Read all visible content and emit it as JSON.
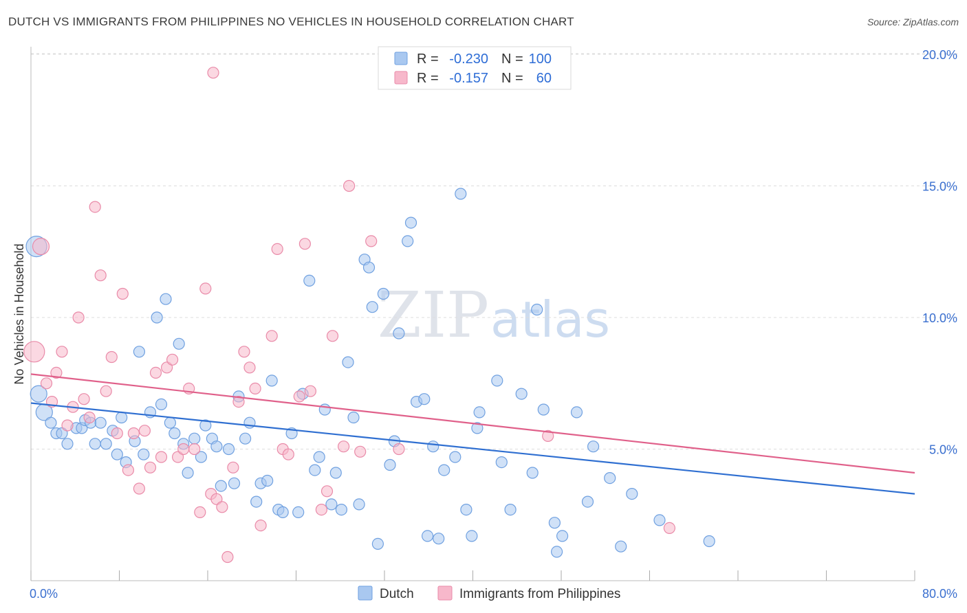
{
  "header": {
    "title": "DUTCH VS IMMIGRANTS FROM PHILIPPINES NO VEHICLES IN HOUSEHOLD CORRELATION CHART",
    "source": "Source: ZipAtlas.com"
  },
  "watermark": {
    "zip": "ZIP",
    "atlas": "atlas"
  },
  "legend": {
    "r_label": "R =",
    "n_label": "N =",
    "entries": [
      {
        "name": "Dutch",
        "r": "-0.230",
        "n": "100",
        "color": "#a9c8f0",
        "stroke": "#6fa0e0"
      },
      {
        "name": "Immigrants from Philippines",
        "r": "-0.157",
        "n": "60",
        "color": "#f7b8cb",
        "stroke": "#e98aa8"
      }
    ]
  },
  "chart_data": {
    "type": "scatter",
    "title": "DUTCH VS IMMIGRANTS FROM PHILIPPINES NO VEHICLES IN HOUSEHOLD CORRELATION CHART",
    "xlabel": "",
    "ylabel": "No Vehicles in Household",
    "xlim": [
      0,
      80
    ],
    "ylim": [
      0,
      20
    ],
    "x_tick_labels": [
      "0.0%",
      "80.0%"
    ],
    "y_tick_labels": [
      "5.0%",
      "10.0%",
      "15.0%",
      "20.0%"
    ],
    "y_ticks": [
      5,
      10,
      15,
      20
    ],
    "grid": "horizontal dashed",
    "legend_placement": "top-center",
    "series": [
      {
        "name": "Dutch",
        "color": "#6fa0e0",
        "fill": "#a9c8f0",
        "trend": {
          "x": [
            0,
            80
          ],
          "y": [
            6.75,
            3.3
          ]
        },
        "points": [
          [
            0.5,
            12.7
          ],
          [
            0.7,
            7.1
          ],
          [
            1.2,
            6.4
          ],
          [
            1.8,
            6.0
          ],
          [
            2.3,
            5.6
          ],
          [
            2.8,
            5.6
          ],
          [
            3.3,
            5.2
          ],
          [
            4.1,
            5.8
          ],
          [
            4.6,
            5.8
          ],
          [
            4.9,
            6.1
          ],
          [
            5.4,
            6.0
          ],
          [
            5.8,
            5.2
          ],
          [
            6.3,
            6.0
          ],
          [
            6.8,
            5.2
          ],
          [
            7.4,
            5.7
          ],
          [
            7.8,
            4.8
          ],
          [
            8.2,
            6.2
          ],
          [
            8.6,
            4.5
          ],
          [
            9.4,
            5.3
          ],
          [
            9.8,
            8.7
          ],
          [
            10.2,
            4.8
          ],
          [
            10.8,
            6.4
          ],
          [
            11.4,
            10.0
          ],
          [
            11.8,
            6.7
          ],
          [
            12.2,
            10.7
          ],
          [
            12.6,
            6.0
          ],
          [
            13.4,
            9.0
          ],
          [
            13.8,
            5.2
          ],
          [
            14.2,
            4.1
          ],
          [
            14.8,
            5.4
          ],
          [
            15.4,
            4.7
          ],
          [
            15.8,
            5.9
          ],
          [
            16.4,
            5.4
          ],
          [
            16.8,
            5.1
          ],
          [
            17.2,
            3.6
          ],
          [
            17.9,
            5.0
          ],
          [
            18.4,
            3.7
          ],
          [
            18.8,
            7.0
          ],
          [
            19.4,
            5.4
          ],
          [
            19.8,
            6.0
          ],
          [
            20.4,
            3.0
          ],
          [
            20.8,
            3.7
          ],
          [
            21.4,
            3.8
          ],
          [
            21.8,
            7.6
          ],
          [
            22.4,
            2.7
          ],
          [
            22.8,
            2.6
          ],
          [
            23.6,
            5.6
          ],
          [
            24.2,
            2.6
          ],
          [
            24.6,
            7.1
          ],
          [
            25.2,
            11.4
          ],
          [
            25.7,
            4.2
          ],
          [
            26.1,
            4.7
          ],
          [
            26.6,
            6.5
          ],
          [
            27.2,
            2.9
          ],
          [
            27.6,
            4.1
          ],
          [
            28.1,
            2.7
          ],
          [
            28.7,
            8.3
          ],
          [
            29.2,
            6.2
          ],
          [
            29.7,
            2.9
          ],
          [
            30.2,
            12.2
          ],
          [
            30.6,
            11.9
          ],
          [
            30.9,
            10.4
          ],
          [
            31.4,
            1.4
          ],
          [
            31.9,
            10.9
          ],
          [
            32.5,
            4.4
          ],
          [
            32.9,
            5.3
          ],
          [
            33.3,
            9.4
          ],
          [
            34.1,
            12.9
          ],
          [
            34.4,
            13.6
          ],
          [
            34.9,
            6.8
          ],
          [
            35.6,
            6.9
          ],
          [
            35.9,
            1.7
          ],
          [
            36.4,
            5.1
          ],
          [
            36.9,
            1.6
          ],
          [
            37.4,
            4.2
          ],
          [
            38.4,
            4.7
          ],
          [
            38.9,
            14.7
          ],
          [
            39.4,
            2.7
          ],
          [
            39.9,
            1.7
          ],
          [
            40.4,
            5.8
          ],
          [
            40.6,
            6.4
          ],
          [
            42.2,
            7.6
          ],
          [
            42.6,
            4.5
          ],
          [
            43.4,
            2.7
          ],
          [
            44.4,
            7.1
          ],
          [
            45.4,
            4.1
          ],
          [
            46.4,
            6.5
          ],
          [
            47.4,
            2.2
          ],
          [
            47.6,
            1.1
          ],
          [
            48.1,
            1.7
          ],
          [
            49.4,
            6.4
          ],
          [
            50.4,
            3.0
          ],
          [
            50.9,
            5.1
          ],
          [
            52.4,
            3.9
          ],
          [
            53.4,
            1.3
          ],
          [
            54.4,
            3.3
          ],
          [
            56.9,
            2.3
          ],
          [
            61.4,
            1.5
          ],
          [
            45.8,
            10.3
          ],
          [
            13.0,
            5.6
          ]
        ]
      },
      {
        "name": "Immigrants from Philippines",
        "color": "#e98aa8",
        "fill": "#f7b8cb",
        "trend": {
          "x": [
            0,
            80
          ],
          "y": [
            7.85,
            4.1
          ]
        },
        "points": [
          [
            0.3,
            8.7
          ],
          [
            0.9,
            12.7
          ],
          [
            1.4,
            7.5
          ],
          [
            1.9,
            6.8
          ],
          [
            2.3,
            7.9
          ],
          [
            2.8,
            8.7
          ],
          [
            3.3,
            5.9
          ],
          [
            3.8,
            6.6
          ],
          [
            4.3,
            10.0
          ],
          [
            4.8,
            6.9
          ],
          [
            5.3,
            6.2
          ],
          [
            5.8,
            14.2
          ],
          [
            6.3,
            11.6
          ],
          [
            6.8,
            7.2
          ],
          [
            7.3,
            8.5
          ],
          [
            7.8,
            5.6
          ],
          [
            8.3,
            10.9
          ],
          [
            8.8,
            4.2
          ],
          [
            9.3,
            5.6
          ],
          [
            9.8,
            3.5
          ],
          [
            10.3,
            5.7
          ],
          [
            10.8,
            4.3
          ],
          [
            11.3,
            7.9
          ],
          [
            11.8,
            4.7
          ],
          [
            12.3,
            8.1
          ],
          [
            12.8,
            8.4
          ],
          [
            13.3,
            4.7
          ],
          [
            13.8,
            5.0
          ],
          [
            14.3,
            7.3
          ],
          [
            14.8,
            5.0
          ],
          [
            15.3,
            2.6
          ],
          [
            15.8,
            11.1
          ],
          [
            16.3,
            3.3
          ],
          [
            16.8,
            3.1
          ],
          [
            17.3,
            2.8
          ],
          [
            17.8,
            0.9
          ],
          [
            18.3,
            4.3
          ],
          [
            18.8,
            6.8
          ],
          [
            19.3,
            8.7
          ],
          [
            19.8,
            8.1
          ],
          [
            20.3,
            7.3
          ],
          [
            20.8,
            2.1
          ],
          [
            21.8,
            9.3
          ],
          [
            22.3,
            12.6
          ],
          [
            22.8,
            5.0
          ],
          [
            23.3,
            4.8
          ],
          [
            24.3,
            7.0
          ],
          [
            24.8,
            12.8
          ],
          [
            25.3,
            7.2
          ],
          [
            26.3,
            2.7
          ],
          [
            26.8,
            3.4
          ],
          [
            27.3,
            9.3
          ],
          [
            28.3,
            5.1
          ],
          [
            28.8,
            15.0
          ],
          [
            29.8,
            4.9
          ],
          [
            30.8,
            12.9
          ],
          [
            33.3,
            5.0
          ],
          [
            46.8,
            5.5
          ],
          [
            57.8,
            2.0
          ],
          [
            16.5,
            19.3
          ]
        ]
      }
    ]
  }
}
